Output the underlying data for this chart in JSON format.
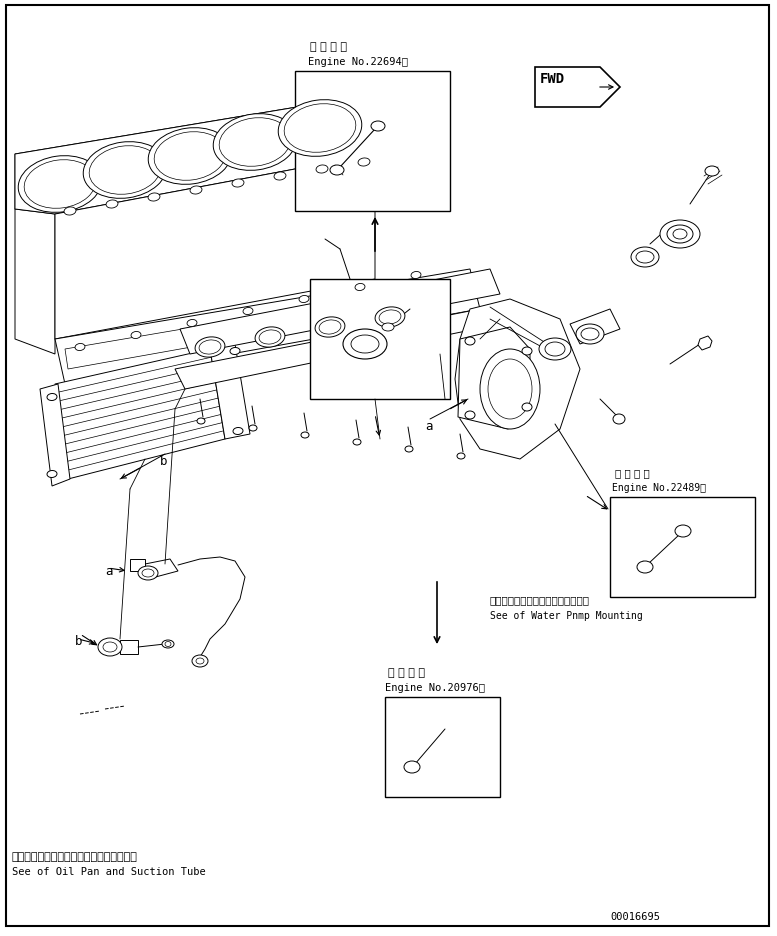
{
  "bg_color": "#ffffff",
  "lc": "#000000",
  "fig_width": 7.77,
  "fig_height": 9.37,
  "dpi": 100,
  "top_label_jp": "適 用 号 機",
  "top_label_en": "Engine No.22694～",
  "right_label_jp": "適 用 号 機",
  "right_label_en": "Engine No.22489～",
  "bottom_label_jp": "適 用 号 機",
  "bottom_label_en": "Engine No.20976～",
  "ref_jp": "ウォータポンプマウンティング参照",
  "ref_en": "See of Water Pnmp Mounting",
  "bottom_ref_jp": "オイルパンおよびサクションチューブ参照",
  "bottom_ref_en": "See of Oil Pan and Suction Tube",
  "part_num": "00016695"
}
